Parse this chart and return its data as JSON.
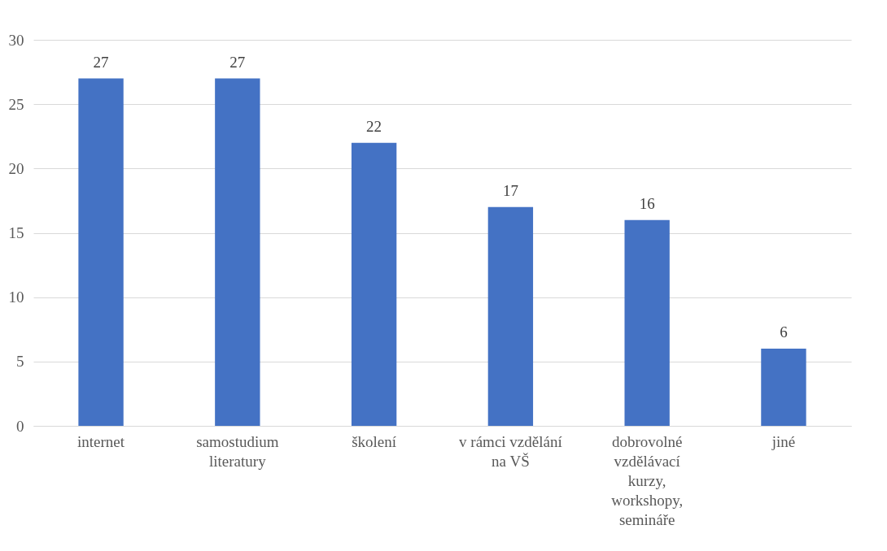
{
  "chart_data": {
    "type": "bar",
    "categories": [
      "internet",
      "samostudium literatury",
      "školení",
      "v rámci vzdělání na VŠ",
      "dobrovolné vzdělávací kurzy, workshopy, semináře",
      "jiné"
    ],
    "values": [
      27,
      27,
      22,
      17,
      16,
      6
    ],
    "color": "#4472c4",
    "ylim": [
      0,
      30
    ],
    "yticks": [
      0,
      5,
      10,
      15,
      20,
      25,
      30
    ],
    "grid": "y",
    "data_labels": true
  }
}
